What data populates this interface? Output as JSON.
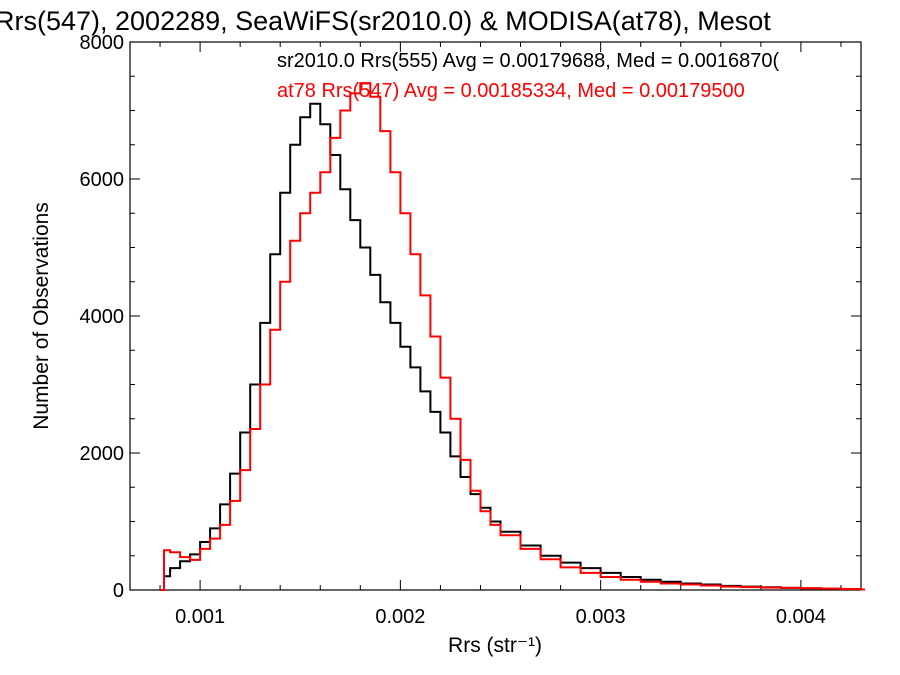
{
  "chart_data": {
    "type": "line",
    "title": "Rrs(547), 2002289, SeaWiFS(sr2010.0) & MODISA(at78), Mesot",
    "xlabel": "Rrs (str⁻¹)",
    "ylabel": "Number of Observations",
    "xlim": [
      0.00065,
      0.0043
    ],
    "ylim": [
      0,
      8000
    ],
    "x_ticks": [
      "0.001",
      "0.002",
      "0.003",
      "0.004"
    ],
    "y_ticks": [
      "0",
      "2000",
      "4000",
      "6000",
      "8000"
    ],
    "grid": false,
    "legend_placement": "top-right",
    "annotations": [
      {
        "text": "sr2010.0 Rrs(555) Avg = 0.00179688, Med = 0.0016870(",
        "color": "#000000"
      },
      {
        "text": "at78 Rrs(547) Avg = 0.00185334, Med = 0.00179500",
        "color": "#ff0000"
      }
    ],
    "series": [
      {
        "color": "#000000",
        "x": [
          0.0008,
          0.00082,
          0.00085,
          0.0009,
          0.00095,
          0.001,
          0.00105,
          0.0011,
          0.00115,
          0.0012,
          0.00125,
          0.0013,
          0.00135,
          0.0014,
          0.00145,
          0.0015,
          0.00155,
          0.0016,
          0.00165,
          0.0017,
          0.00175,
          0.0018,
          0.00185,
          0.0019,
          0.00195,
          0.002,
          0.00205,
          0.0021,
          0.00215,
          0.0022,
          0.00225,
          0.0023,
          0.00235,
          0.0024,
          0.00245,
          0.0025,
          0.0026,
          0.0027,
          0.0028,
          0.0029,
          0.003,
          0.0031,
          0.0032,
          0.0033,
          0.0034,
          0.0035,
          0.0036,
          0.0037,
          0.0038,
          0.0039,
          0.004,
          0.0041,
          0.0042,
          0.0043
        ],
        "y": [
          0,
          200,
          320,
          420,
          520,
          700,
          900,
          1250,
          1700,
          2300,
          3000,
          3900,
          4900,
          5800,
          6500,
          6900,
          7100,
          6800,
          6350,
          5850,
          5400,
          5000,
          4600,
          4200,
          3900,
          3550,
          3250,
          2900,
          2600,
          2300,
          1950,
          1650,
          1400,
          1200,
          1000,
          850,
          650,
          500,
          400,
          320,
          250,
          190,
          150,
          120,
          95,
          80,
          60,
          50,
          40,
          30,
          25,
          18,
          12,
          8
        ]
      },
      {
        "color": "#ff0000",
        "x": [
          0.0008,
          0.00082,
          0.00085,
          0.0009,
          0.00095,
          0.001,
          0.00105,
          0.0011,
          0.00115,
          0.0012,
          0.00125,
          0.0013,
          0.00135,
          0.0014,
          0.00145,
          0.0015,
          0.00155,
          0.0016,
          0.00165,
          0.0017,
          0.00175,
          0.0018,
          0.00185,
          0.0019,
          0.00195,
          0.002,
          0.00205,
          0.0021,
          0.00215,
          0.0022,
          0.00225,
          0.0023,
          0.00235,
          0.0024,
          0.00245,
          0.0025,
          0.0026,
          0.0027,
          0.0028,
          0.0029,
          0.003,
          0.0031,
          0.0032,
          0.0033,
          0.0034,
          0.0035,
          0.0036,
          0.0037,
          0.0038,
          0.0039,
          0.004,
          0.0041,
          0.0042,
          0.0043
        ],
        "y": [
          0,
          580,
          550,
          480,
          440,
          600,
          750,
          950,
          1300,
          1750,
          2350,
          3000,
          3800,
          4500,
          5100,
          5500,
          5800,
          6100,
          6600,
          7000,
          7250,
          7400,
          7200,
          6700,
          6100,
          5500,
          4900,
          4300,
          3700,
          3100,
          2500,
          1900,
          1450,
          1150,
          950,
          800,
          600,
          450,
          330,
          250,
          190,
          150,
          120,
          95,
          80,
          65,
          50,
          42,
          35,
          30,
          25,
          20,
          15,
          8
        ]
      }
    ]
  }
}
